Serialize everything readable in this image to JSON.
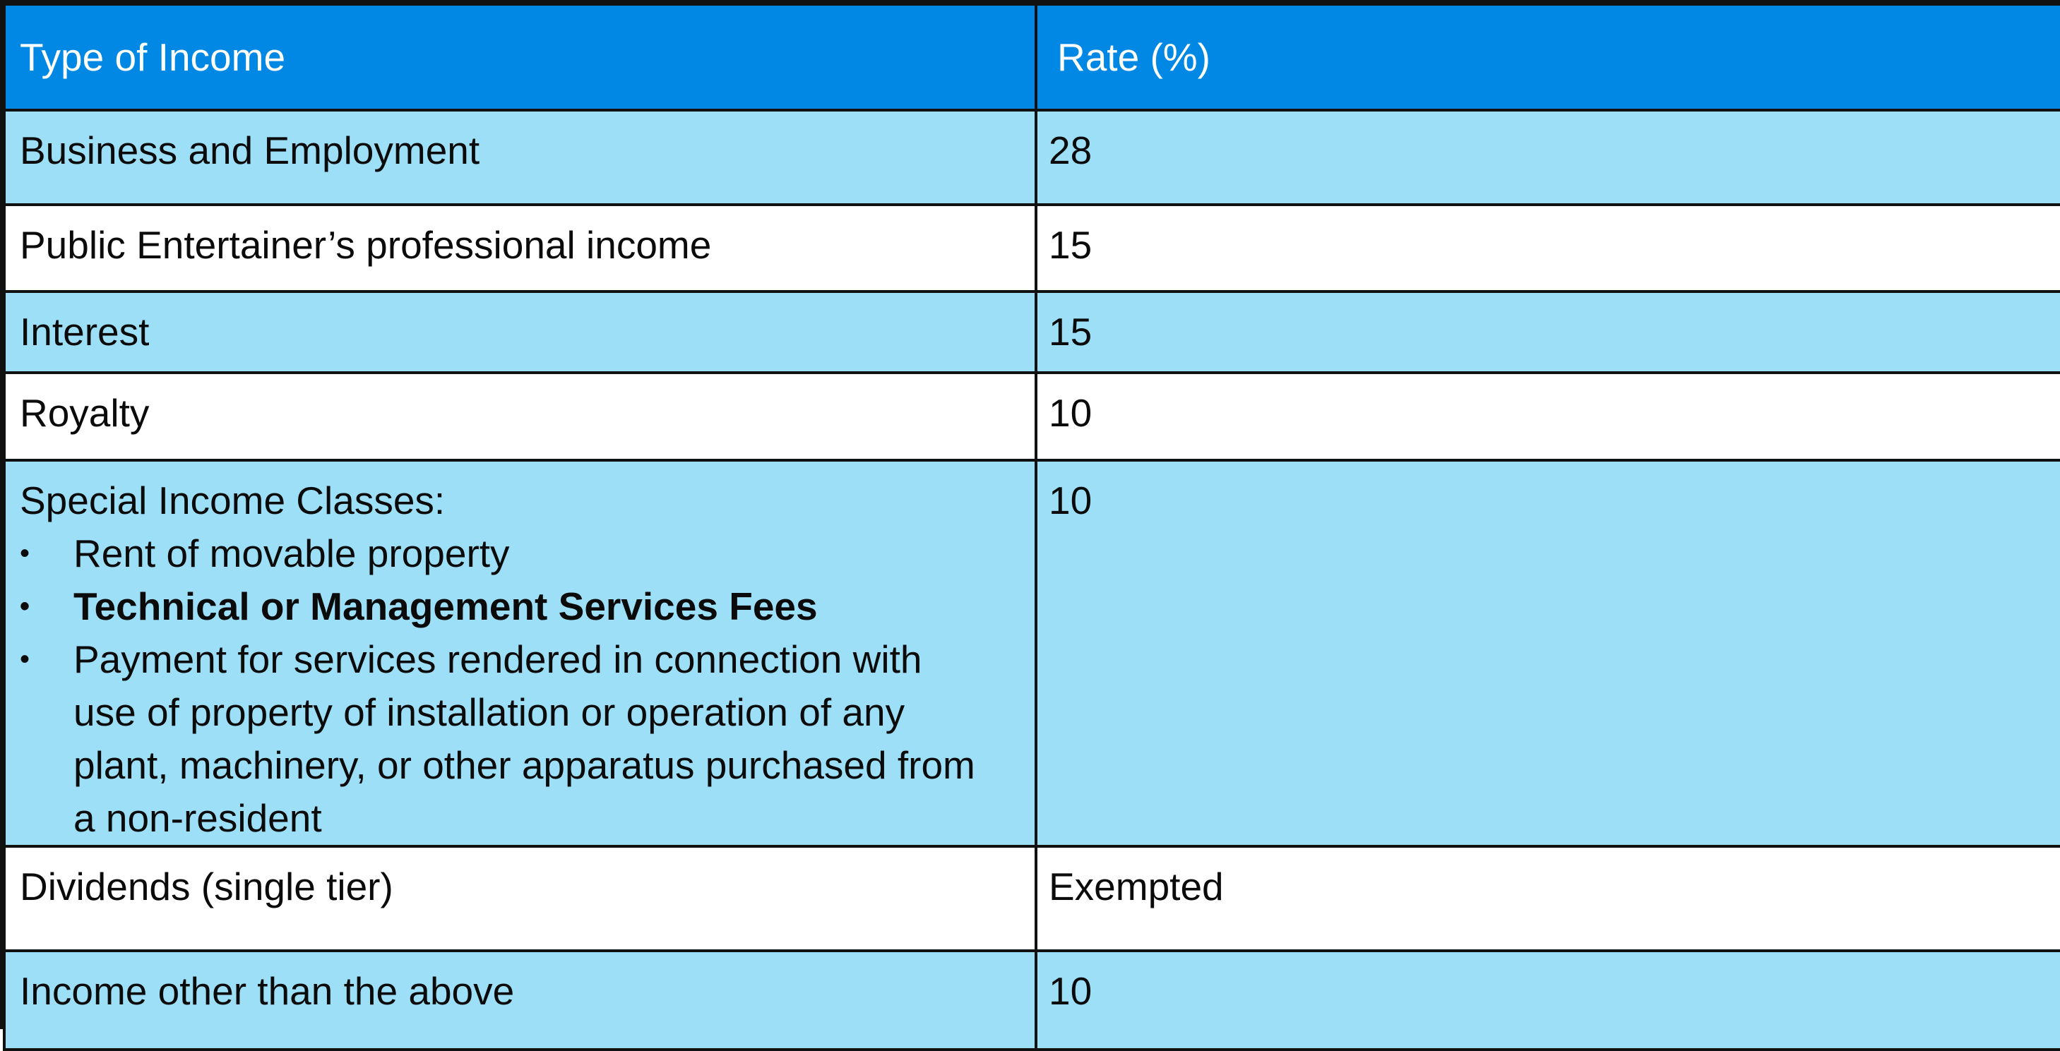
{
  "table": {
    "headers": {
      "type": "Type of Income",
      "rate": "Rate (%)"
    },
    "rows": [
      {
        "type": "Business and Employment",
        "rate": "28"
      },
      {
        "type": "Public Entertainer’s professional income",
        "rate": "15"
      },
      {
        "type": "Interest",
        "rate": "15"
      },
      {
        "type": "Royalty",
        "rate": "10"
      },
      {
        "type": "Special Income Classes:",
        "rate": "10",
        "sub_items": [
          "Rent of movable property",
          "Technical or Management Services Fees",
          "Payment for services rendered in connection with use of property of installation or operation of any plant, machinery, or other apparatus purchased from a non-resident"
        ]
      },
      {
        "type": "Dividends (single tier)",
        "rate": "Exempted"
      },
      {
        "type": "Income other than the above",
        "rate": "10"
      }
    ]
  },
  "bullet_glyph": "•",
  "colors": {
    "header_bg": "#0088e4",
    "shaded_row_bg": "#9cdff7",
    "plain_row_bg": "#ffffff",
    "border": "#111111"
  }
}
